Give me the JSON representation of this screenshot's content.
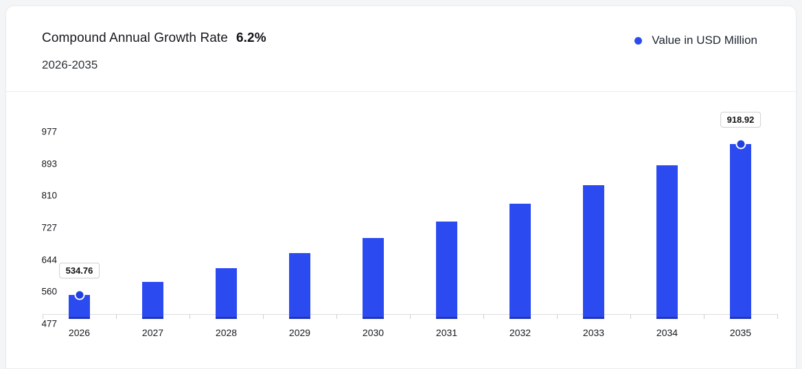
{
  "header": {
    "title": "Compound Annual Growth Rate",
    "cagr_value": "6.2%",
    "period": "2026-2035"
  },
  "legend": {
    "label": "Value in USD Million"
  },
  "colors": {
    "accent": "#2b4bf0",
    "bar": "#2b4bf0",
    "bar_base": "#2234b8",
    "marker": "#2040e0",
    "axis_line": "#dcdcdc"
  },
  "chart_data": {
    "type": "bar",
    "title": "Compound Annual Growth Rate 6.2%",
    "subtitle": "2026-2035",
    "categories": [
      "2026",
      "2027",
      "2028",
      "2029",
      "2030",
      "2031",
      "2032",
      "2033",
      "2034",
      "2035"
    ],
    "series": [
      {
        "name": "Value in USD Million",
        "values": [
          534.76,
          567.92,
          603.13,
          640.52,
          680.23,
          722.41,
          767.2,
          814.76,
          865.28,
          918.92
        ]
      }
    ],
    "unit": "USD Million",
    "cagr_percent": 6.2,
    "y_ticks": [
      477,
      560,
      644,
      727,
      810,
      893,
      977
    ],
    "ylim": [
      477,
      977
    ],
    "xlabel": "",
    "ylabel": "",
    "grid": false,
    "legend_position": "top-right",
    "data_labels": [
      {
        "category": "2026",
        "value": 534.76,
        "label": "534.76"
      },
      {
        "category": "2035",
        "value": 918.92,
        "label": "918.92"
      }
    ]
  }
}
